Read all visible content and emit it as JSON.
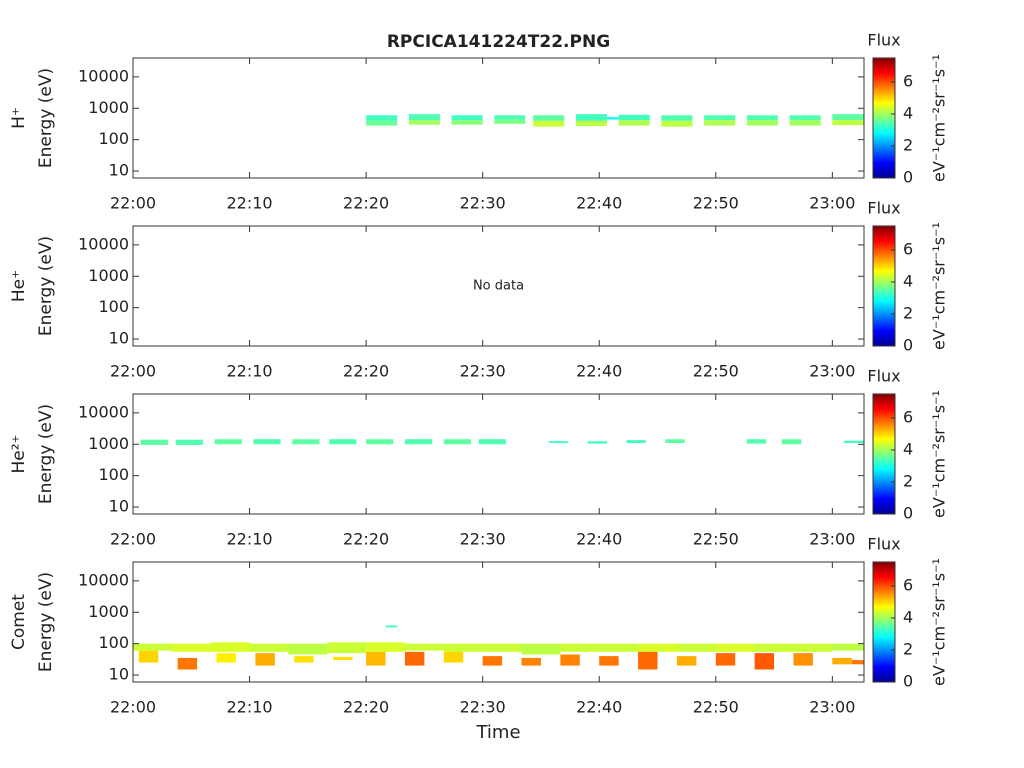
{
  "chart_data": [
    {
      "type": "spectrogram",
      "title": "RPCICA141224T22.PNG",
      "ylabel": [
        "H⁺",
        "Energy (eV)"
      ],
      "log_y": true,
      "xlim": [
        "22:00:00",
        "23:02:43"
      ],
      "xticks": [
        "22:00",
        "22:10",
        "22:20",
        "22:30",
        "22:40",
        "22:50",
        "23:00"
      ],
      "ylim": [
        6,
        40000
      ],
      "yticks": [
        10,
        100,
        1000,
        10000
      ],
      "colorbar_title": "Flux",
      "colorbar_label": "eV⁻¹cm⁻²sr⁻¹s⁻¹",
      "clim": [
        0,
        7.5
      ],
      "cticks": [
        0,
        2,
        4,
        6
      ],
      "cells": [
        {
          "t0": "22:20:00",
          "t1": "22:22:40",
          "e0": 280,
          "e1": 400,
          "flux": 3.6
        },
        {
          "t0": "22:20:00",
          "t1": "22:22:40",
          "e0": 400,
          "e1": 600,
          "flux": 3.3
        },
        {
          "t0": "22:23:40",
          "t1": "22:26:20",
          "e0": 300,
          "e1": 420,
          "flux": 4.0
        },
        {
          "t0": "22:23:40",
          "t1": "22:26:20",
          "e0": 420,
          "e1": 650,
          "flux": 3.4
        },
        {
          "t0": "22:27:20",
          "t1": "22:30:00",
          "e0": 300,
          "e1": 420,
          "flux": 3.8
        },
        {
          "t0": "22:27:20",
          "t1": "22:30:00",
          "e0": 420,
          "e1": 600,
          "flux": 3.3
        },
        {
          "t0": "22:31:00",
          "t1": "22:33:40",
          "e0": 320,
          "e1": 430,
          "flux": 3.7
        },
        {
          "t0": "22:31:00",
          "t1": "22:33:40",
          "e0": 430,
          "e1": 600,
          "flux": 3.4
        },
        {
          "t0": "22:34:20",
          "t1": "22:37:00",
          "e0": 260,
          "e1": 400,
          "flux": 4.3
        },
        {
          "t0": "22:34:20",
          "t1": "22:37:00",
          "e0": 400,
          "e1": 600,
          "flux": 3.5
        },
        {
          "t0": "22:38:00",
          "t1": "22:40:40",
          "e0": 270,
          "e1": 400,
          "flux": 4.2
        },
        {
          "t0": "22:38:00",
          "t1": "22:40:40",
          "e0": 400,
          "e1": 650,
          "flux": 3.3
        },
        {
          "t0": "22:40:40",
          "t1": "22:41:40",
          "e0": 440,
          "e1": 520,
          "flux": 2.8
        },
        {
          "t0": "22:41:40",
          "t1": "22:44:20",
          "e0": 280,
          "e1": 420,
          "flux": 4.1
        },
        {
          "t0": "22:41:40",
          "t1": "22:44:20",
          "e0": 420,
          "e1": 620,
          "flux": 3.3
        },
        {
          "t0": "22:45:20",
          "t1": "22:48:00",
          "e0": 260,
          "e1": 400,
          "flux": 4.2
        },
        {
          "t0": "22:45:20",
          "t1": "22:48:00",
          "e0": 400,
          "e1": 600,
          "flux": 3.4
        },
        {
          "t0": "22:49:00",
          "t1": "22:51:40",
          "e0": 280,
          "e1": 420,
          "flux": 4.1
        },
        {
          "t0": "22:49:00",
          "t1": "22:51:40",
          "e0": 420,
          "e1": 600,
          "flux": 3.4
        },
        {
          "t0": "22:52:40",
          "t1": "22:55:20",
          "e0": 280,
          "e1": 420,
          "flux": 4.0
        },
        {
          "t0": "22:52:40",
          "t1": "22:55:20",
          "e0": 420,
          "e1": 600,
          "flux": 3.4
        },
        {
          "t0": "22:56:20",
          "t1": "22:59:00",
          "e0": 280,
          "e1": 420,
          "flux": 4.0
        },
        {
          "t0": "22:56:20",
          "t1": "22:59:00",
          "e0": 420,
          "e1": 600,
          "flux": 3.4
        },
        {
          "t0": "23:00:00",
          "t1": "23:02:43",
          "e0": 290,
          "e1": 420,
          "flux": 4.2
        },
        {
          "t0": "23:00:00",
          "t1": "23:02:43",
          "e0": 420,
          "e1": 650,
          "flux": 3.5
        }
      ]
    },
    {
      "type": "spectrogram",
      "ylabel": [
        "He⁺",
        "Energy (eV)"
      ],
      "log_y": true,
      "annotation": "No data",
      "xlim": [
        "22:00:00",
        "23:02:43"
      ],
      "xticks": [
        "22:00",
        "22:10",
        "22:20",
        "22:30",
        "22:40",
        "22:50",
        "23:00"
      ],
      "ylim": [
        6,
        40000
      ],
      "yticks": [
        10,
        100,
        1000,
        10000
      ],
      "colorbar_title": "Flux",
      "colorbar_label": "eV⁻¹cm⁻²sr⁻¹s⁻¹",
      "clim": [
        0,
        7.5
      ],
      "cticks": [
        0,
        2,
        4,
        6
      ],
      "cells": []
    },
    {
      "type": "spectrogram",
      "ylabel": [
        "He²⁺",
        "Energy (eV)"
      ],
      "log_y": true,
      "xlim": [
        "22:00:00",
        "23:02:43"
      ],
      "xticks": [
        "22:00",
        "22:10",
        "22:20",
        "22:30",
        "22:40",
        "22:50",
        "23:00"
      ],
      "ylim": [
        6,
        40000
      ],
      "yticks": [
        10,
        100,
        1000,
        10000
      ],
      "colorbar_title": "Flux",
      "colorbar_label": "eV⁻¹cm⁻²sr⁻¹s⁻¹",
      "clim": [
        0,
        7.5
      ],
      "cticks": [
        0,
        2,
        4,
        6
      ],
      "cells": [
        {
          "t0": "22:00:40",
          "t1": "22:03:00",
          "e0": 950,
          "e1": 1400,
          "flux": 3.5
        },
        {
          "t0": "22:03:40",
          "t1": "22:06:00",
          "e0": 950,
          "e1": 1400,
          "flux": 3.4
        },
        {
          "t0": "22:07:00",
          "t1": "22:09:20",
          "e0": 1000,
          "e1": 1450,
          "flux": 3.5
        },
        {
          "t0": "22:10:20",
          "t1": "22:12:40",
          "e0": 1000,
          "e1": 1450,
          "flux": 3.4
        },
        {
          "t0": "22:13:40",
          "t1": "22:16:00",
          "e0": 1000,
          "e1": 1450,
          "flux": 3.5
        },
        {
          "t0": "22:16:50",
          "t1": "22:19:10",
          "e0": 1000,
          "e1": 1450,
          "flux": 3.4
        },
        {
          "t0": "22:20:00",
          "t1": "22:22:20",
          "e0": 1000,
          "e1": 1450,
          "flux": 3.5
        },
        {
          "t0": "22:23:20",
          "t1": "22:25:40",
          "e0": 1000,
          "e1": 1450,
          "flux": 3.4
        },
        {
          "t0": "22:26:40",
          "t1": "22:29:00",
          "e0": 1000,
          "e1": 1450,
          "flux": 3.5
        },
        {
          "t0": "22:29:40",
          "t1": "22:32:00",
          "e0": 1000,
          "e1": 1450,
          "flux": 3.4
        },
        {
          "t0": "22:35:40",
          "t1": "22:37:20",
          "e0": 1100,
          "e1": 1250,
          "flux": 3.2
        },
        {
          "t0": "22:39:00",
          "t1": "22:40:40",
          "e0": 1050,
          "e1": 1250,
          "flux": 3.3
        },
        {
          "t0": "22:42:20",
          "t1": "22:44:00",
          "e0": 1100,
          "e1": 1350,
          "flux": 3.3
        },
        {
          "t0": "22:45:40",
          "t1": "22:47:20",
          "e0": 1100,
          "e1": 1450,
          "flux": 3.5
        },
        {
          "t0": "22:52:40",
          "t1": "22:54:20",
          "e0": 1050,
          "e1": 1450,
          "flux": 3.4
        },
        {
          "t0": "22:55:40",
          "t1": "22:57:20",
          "e0": 1000,
          "e1": 1450,
          "flux": 3.5
        },
        {
          "t0": "23:01:00",
          "t1": "23:02:43",
          "e0": 1100,
          "e1": 1300,
          "flux": 3.3
        }
      ]
    },
    {
      "type": "spectrogram",
      "ylabel": [
        "Comet",
        "Energy (eV)"
      ],
      "log_y": true,
      "xlabel": "Time",
      "xlim": [
        "22:00:00",
        "23:02:43"
      ],
      "xticks": [
        "22:00",
        "22:10",
        "22:20",
        "22:30",
        "22:40",
        "22:50",
        "23:00"
      ],
      "ylim": [
        6,
        40000
      ],
      "yticks": [
        10,
        100,
        1000,
        10000
      ],
      "colorbar_title": "Flux",
      "colorbar_label": "eV⁻¹cm⁻²sr⁻¹s⁻¹",
      "clim": [
        0,
        7.5
      ],
      "cticks": [
        0,
        2,
        4,
        6
      ],
      "cells": [
        {
          "t0": "22:00:00",
          "t1": "22:03:20",
          "e0": 60,
          "e1": 100,
          "flux": 4.3
        },
        {
          "t0": "22:00:30",
          "t1": "22:02:10",
          "e0": 25,
          "e1": 60,
          "flux": 5.0
        },
        {
          "t0": "22:03:20",
          "t1": "22:06:40",
          "e0": 55,
          "e1": 100,
          "flux": 4.4
        },
        {
          "t0": "22:03:50",
          "t1": "22:05:30",
          "e0": 15,
          "e1": 35,
          "flux": 5.7
        },
        {
          "t0": "22:06:40",
          "t1": "22:10:00",
          "e0": 55,
          "e1": 110,
          "flux": 4.4
        },
        {
          "t0": "22:07:10",
          "t1": "22:08:50",
          "e0": 25,
          "e1": 50,
          "flux": 4.8
        },
        {
          "t0": "22:10:00",
          "t1": "22:13:20",
          "e0": 55,
          "e1": 100,
          "flux": 4.3
        },
        {
          "t0": "22:10:30",
          "t1": "22:12:10",
          "e0": 20,
          "e1": 50,
          "flux": 5.3
        },
        {
          "t0": "22:13:20",
          "t1": "22:16:40",
          "e0": 45,
          "e1": 100,
          "flux": 4.2
        },
        {
          "t0": "22:13:50",
          "t1": "22:15:30",
          "e0": 25,
          "e1": 40,
          "flux": 4.9
        },
        {
          "t0": "22:16:40",
          "t1": "22:20:00",
          "e0": 50,
          "e1": 110,
          "flux": 4.3
        },
        {
          "t0": "22:17:10",
          "t1": "22:18:50",
          "e0": 30,
          "e1": 38,
          "flux": 4.9
        },
        {
          "t0": "22:20:00",
          "t1": "22:23:20",
          "e0": 55,
          "e1": 110,
          "flux": 4.4
        },
        {
          "t0": "22:20:00",
          "t1": "22:21:40",
          "e0": 20,
          "e1": 55,
          "flux": 5.2
        },
        {
          "t0": "22:21:40",
          "t1": "22:22:40",
          "e0": 330,
          "e1": 380,
          "flux": 3.3
        },
        {
          "t0": "22:23:20",
          "t1": "22:26:40",
          "e0": 60,
          "e1": 100,
          "flux": 4.3
        },
        {
          "t0": "22:23:20",
          "t1": "22:25:00",
          "e0": 20,
          "e1": 55,
          "flux": 5.8
        },
        {
          "t0": "22:26:40",
          "t1": "22:30:00",
          "e0": 55,
          "e1": 100,
          "flux": 4.3
        },
        {
          "t0": "22:26:40",
          "t1": "22:28:20",
          "e0": 25,
          "e1": 55,
          "flux": 5.0
        },
        {
          "t0": "22:30:00",
          "t1": "22:33:20",
          "e0": 55,
          "e1": 100,
          "flux": 4.3
        },
        {
          "t0": "22:30:00",
          "t1": "22:31:40",
          "e0": 20,
          "e1": 40,
          "flux": 5.7
        },
        {
          "t0": "22:33:20",
          "t1": "22:36:40",
          "e0": 45,
          "e1": 100,
          "flux": 4.2
        },
        {
          "t0": "22:33:20",
          "t1": "22:35:00",
          "e0": 20,
          "e1": 35,
          "flux": 5.6
        },
        {
          "t0": "22:36:40",
          "t1": "22:40:00",
          "e0": 55,
          "e1": 100,
          "flux": 4.3
        },
        {
          "t0": "22:36:40",
          "t1": "22:38:20",
          "e0": 20,
          "e1": 45,
          "flux": 5.6
        },
        {
          "t0": "22:40:00",
          "t1": "22:43:20",
          "e0": 55,
          "e1": 100,
          "flux": 4.3
        },
        {
          "t0": "22:40:00",
          "t1": "22:41:40",
          "e0": 20,
          "e1": 40,
          "flux": 5.7
        },
        {
          "t0": "22:43:20",
          "t1": "22:46:40",
          "e0": 55,
          "e1": 100,
          "flux": 4.4
        },
        {
          "t0": "22:43:20",
          "t1": "22:45:00",
          "e0": 15,
          "e1": 55,
          "flux": 5.8
        },
        {
          "t0": "22:46:40",
          "t1": "22:50:00",
          "e0": 55,
          "e1": 100,
          "flux": 4.3
        },
        {
          "t0": "22:46:40",
          "t1": "22:48:20",
          "e0": 20,
          "e1": 40,
          "flux": 5.3
        },
        {
          "t0": "22:50:00",
          "t1": "22:53:20",
          "e0": 55,
          "e1": 100,
          "flux": 4.4
        },
        {
          "t0": "22:50:00",
          "t1": "22:51:40",
          "e0": 20,
          "e1": 50,
          "flux": 5.8
        },
        {
          "t0": "22:53:20",
          "t1": "22:56:40",
          "e0": 55,
          "e1": 100,
          "flux": 4.3
        },
        {
          "t0": "22:53:20",
          "t1": "22:55:00",
          "e0": 15,
          "e1": 50,
          "flux": 5.9
        },
        {
          "t0": "22:56:40",
          "t1": "23:00:00",
          "e0": 55,
          "e1": 100,
          "flux": 4.3
        },
        {
          "t0": "22:56:40",
          "t1": "22:58:20",
          "e0": 20,
          "e1": 50,
          "flux": 5.5
        },
        {
          "t0": "23:00:00",
          "t1": "23:02:43",
          "e0": 60,
          "e1": 100,
          "flux": 4.2
        },
        {
          "t0": "23:00:00",
          "t1": "23:01:40",
          "e0": 22,
          "e1": 35,
          "flux": 5.3
        },
        {
          "t0": "23:01:40",
          "t1": "23:02:43",
          "e0": 22,
          "e1": 30,
          "flux": 5.7
        }
      ]
    }
  ]
}
